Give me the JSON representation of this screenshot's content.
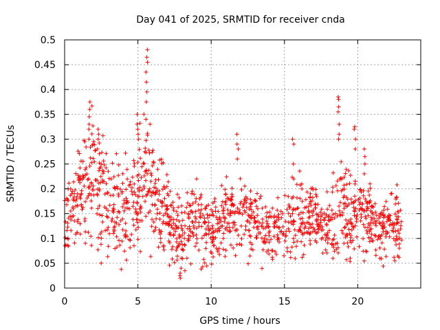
{
  "chart_data": {
    "type": "scatter",
    "title": "Day 041 of 2025, SRMTID for receiver cnda",
    "xlabel": "GPS time / hours",
    "ylabel": "SRMTID / TECUs",
    "xlim": [
      0,
      24.3
    ],
    "ylim": [
      0,
      0.5
    ],
    "grid": true,
    "marker": "+",
    "color": "#ff0000",
    "x_ticks": [
      0,
      5,
      10,
      15,
      20
    ],
    "x_tick_labels": [
      "0",
      "5",
      "10",
      "15",
      "20"
    ],
    "y_ticks": [
      0,
      0.05,
      0.1,
      0.15,
      0.2,
      0.25,
      0.3,
      0.35,
      0.4,
      0.45,
      0.5
    ],
    "y_tick_labels": [
      "0",
      "0.05",
      "0.1",
      "0.15",
      "0.2",
      "0.25",
      "0.3",
      "0.35",
      "0.4",
      "0.45",
      "0.5"
    ],
    "data_extent": {
      "x_min": 0,
      "x_max": 23.0
    },
    "series": [
      {
        "name": "SRMTID",
        "envelope_x": [
          0,
          0.5,
          1,
          1.5,
          2,
          2.5,
          3,
          3.5,
          4,
          4.5,
          5,
          5.5,
          6,
          6.5,
          7,
          7.5,
          8,
          8.5,
          9,
          9.5,
          10,
          10.5,
          11,
          11.5,
          12,
          12.5,
          13,
          13.5,
          14,
          14.5,
          15,
          15.5,
          16,
          16.5,
          17,
          17.5,
          18,
          18.5,
          19,
          19.5,
          20,
          20.5,
          21,
          21.5,
          22,
          22.5,
          23
        ],
        "envelope_low": [
          0.08,
          0.09,
          0.1,
          0.1,
          0.1,
          0.09,
          0.08,
          0.08,
          0.07,
          0.07,
          0.08,
          0.09,
          0.1,
          0.08,
          0.07,
          0.05,
          0.03,
          0.05,
          0.06,
          0.06,
          0.05,
          0.06,
          0.07,
          0.07,
          0.07,
          0.07,
          0.07,
          0.06,
          0.06,
          0.05,
          0.06,
          0.06,
          0.07,
          0.07,
          0.07,
          0.07,
          0.07,
          0.05,
          0.07,
          0.07,
          0.07,
          0.07,
          0.07,
          0.07,
          0.07,
          0.06,
          0.06
        ],
        "envelope_high": [
          0.19,
          0.23,
          0.27,
          0.31,
          0.35,
          0.31,
          0.27,
          0.25,
          0.24,
          0.25,
          0.27,
          0.34,
          0.3,
          0.25,
          0.23,
          0.2,
          0.18,
          0.2,
          0.22,
          0.18,
          0.17,
          0.18,
          0.2,
          0.21,
          0.23,
          0.21,
          0.2,
          0.2,
          0.18,
          0.18,
          0.2,
          0.22,
          0.22,
          0.21,
          0.2,
          0.19,
          0.18,
          0.22,
          0.24,
          0.22,
          0.21,
          0.23,
          0.19,
          0.17,
          0.18,
          0.2,
          0.19
        ],
        "point_count": 1350,
        "seed": 41,
        "spikes": [
          {
            "x": 1.7,
            "values": [
              0.3,
              0.32,
              0.33,
              0.345,
              0.36,
              0.375
            ]
          },
          {
            "x": 2.3,
            "values": [
              0.28,
              0.3,
              0.31,
              0.32
            ]
          },
          {
            "x": 5.0,
            "values": [
              0.3,
              0.31,
              0.32,
              0.33,
              0.35
            ]
          },
          {
            "x": 5.6,
            "values": [
              0.34,
              0.375,
              0.395,
              0.415,
              0.435,
              0.455,
              0.465,
              0.48
            ]
          },
          {
            "x": 7.9,
            "values": [
              0.02,
              0.025,
              0.03,
              0.04
            ]
          },
          {
            "x": 11.8,
            "values": [
              0.26,
              0.28,
              0.29,
              0.31
            ]
          },
          {
            "x": 15.6,
            "values": [
              0.22,
              0.25,
              0.29,
              0.3
            ]
          },
          {
            "x": 18.7,
            "values": [
              0.3,
              0.31,
              0.33,
              0.355,
              0.365,
              0.38,
              0.385
            ]
          },
          {
            "x": 19.8,
            "values": [
              0.28,
              0.3,
              0.32,
              0.325
            ]
          },
          {
            "x": 20.5,
            "values": [
              0.23,
              0.25,
              0.265,
              0.28
            ]
          }
        ]
      }
    ]
  }
}
